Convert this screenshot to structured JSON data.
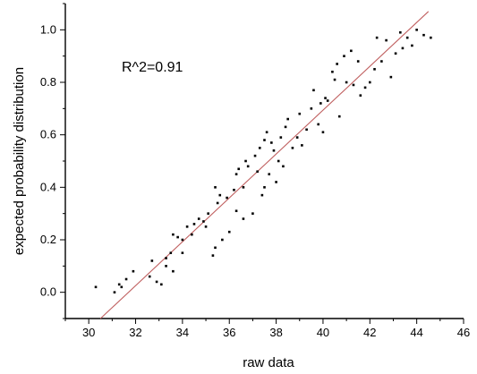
{
  "chart_data": {
    "type": "scatter",
    "title": "",
    "xlabel": "raw data",
    "ylabel": "expected probability distribution",
    "annotation": "R^2=0.91",
    "xlim": [
      29,
      46
    ],
    "ylim": [
      -0.1,
      1.1
    ],
    "xticks": [
      30,
      32,
      34,
      36,
      38,
      40,
      42,
      44,
      46
    ],
    "yticks": [
      0.0,
      0.2,
      0.4,
      0.6,
      0.8,
      1.0
    ],
    "xtick_labels": [
      "30",
      "32",
      "34",
      "36",
      "38",
      "40",
      "42",
      "44",
      "46"
    ],
    "ytick_labels": [
      "0.0",
      "0.2",
      "0.4",
      "0.6",
      "0.8",
      "1.0"
    ],
    "grid": false,
    "legend": "none",
    "colors": {
      "points": "#000000",
      "fit_line": "#c06060",
      "axes": "#000000"
    },
    "fit_line": {
      "x": [
        30.5,
        44.5
      ],
      "y": [
        -0.1,
        1.07
      ]
    },
    "series": [
      {
        "x": [
          30.3,
          31.1,
          31.3,
          31.4,
          31.6,
          31.9,
          32.6,
          32.7,
          32.9,
          33.1,
          33.3,
          33.3,
          33.5,
          33.6,
          33.6,
          33.8,
          34.0,
          34.0,
          34.2,
          34.4,
          34.5,
          34.7,
          34.9,
          35.0,
          35.1,
          35.3,
          35.4,
          35.4,
          35.5,
          35.6,
          35.7,
          35.9,
          36.0,
          36.2,
          36.3,
          36.3,
          36.4,
          36.6,
          36.6,
          36.7,
          36.8,
          37.0,
          37.1,
          37.2,
          37.3,
          37.4,
          37.5,
          37.5,
          37.6,
          37.7,
          37.8,
          37.9,
          38.0,
          38.1,
          38.2,
          38.3,
          38.4,
          38.5,
          38.7,
          38.9,
          39.0,
          39.1,
          39.3,
          39.5,
          39.6,
          39.8,
          39.9,
          40.0,
          40.1,
          40.2,
          40.4,
          40.5,
          40.6,
          40.7,
          40.9,
          41.0,
          41.2,
          41.3,
          41.5,
          41.6,
          41.8,
          42.0,
          42.2,
          42.3,
          42.5,
          42.7,
          42.9,
          43.1,
          43.3,
          43.4,
          43.6,
          43.8,
          44.0,
          44.3,
          44.6
        ],
        "y": [
          0.02,
          0.0,
          0.03,
          0.02,
          0.05,
          0.08,
          0.06,
          0.12,
          0.04,
          0.03,
          0.1,
          0.13,
          0.15,
          0.08,
          0.22,
          0.21,
          0.2,
          0.15,
          0.25,
          0.22,
          0.26,
          0.28,
          0.27,
          0.25,
          0.3,
          0.14,
          0.17,
          0.4,
          0.34,
          0.37,
          0.2,
          0.36,
          0.23,
          0.39,
          0.45,
          0.31,
          0.47,
          0.28,
          0.4,
          0.5,
          0.48,
          0.3,
          0.52,
          0.46,
          0.55,
          0.37,
          0.4,
          0.58,
          0.61,
          0.45,
          0.57,
          0.54,
          0.42,
          0.5,
          0.59,
          0.48,
          0.63,
          0.66,
          0.55,
          0.59,
          0.68,
          0.56,
          0.62,
          0.7,
          0.77,
          0.64,
          0.72,
          0.61,
          0.74,
          0.73,
          0.84,
          0.81,
          0.87,
          0.67,
          0.9,
          0.8,
          0.92,
          0.79,
          0.88,
          0.75,
          0.78,
          0.8,
          0.85,
          0.97,
          0.88,
          0.96,
          0.82,
          0.91,
          0.99,
          0.93,
          0.97,
          0.94,
          1.0,
          0.98,
          0.97
        ]
      }
    ]
  }
}
